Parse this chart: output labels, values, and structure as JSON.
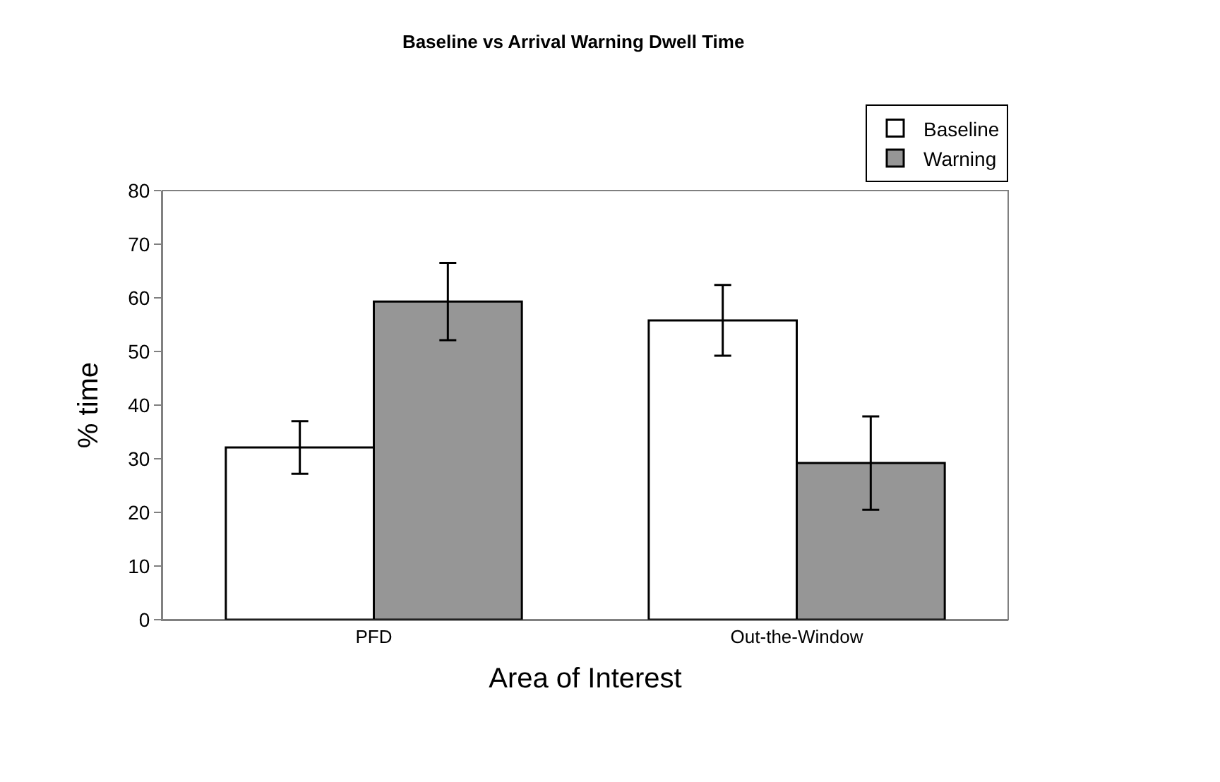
{
  "chart_data": {
    "type": "bar",
    "title": "Baseline vs Arrival Warning Dwell Time",
    "xlabel": "Area of Interest",
    "ylabel": "% time",
    "categories": [
      "PFD",
      "Out-the-Window"
    ],
    "series": [
      {
        "name": "Baseline",
        "color": "#ffffff",
        "values": [
          32.1,
          55.8
        ],
        "errors": [
          4.9,
          6.6
        ]
      },
      {
        "name": "Warning",
        "color": "#969696",
        "values": [
          59.3,
          29.2
        ],
        "errors": [
          7.2,
          8.7
        ]
      }
    ],
    "ylim": [
      0,
      80
    ],
    "yticks": [
      0,
      10,
      20,
      30,
      40,
      50,
      60,
      70,
      80
    ],
    "grid": false,
    "legend": "top right"
  }
}
